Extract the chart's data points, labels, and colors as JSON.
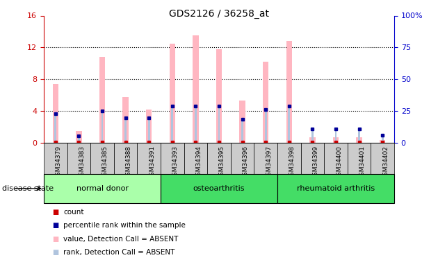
{
  "title": "GDS2126 / 36258_at",
  "samples": [
    "GSM34379",
    "GSM34383",
    "GSM34385",
    "GSM34388",
    "GSM34391",
    "GSM34393",
    "GSM34394",
    "GSM34395",
    "GSM34396",
    "GSM34397",
    "GSM34398",
    "GSM34399",
    "GSM34400",
    "GSM34401",
    "GSM34402"
  ],
  "values_absent": [
    7.4,
    1.5,
    10.8,
    5.8,
    4.2,
    12.5,
    13.5,
    11.8,
    5.3,
    10.2,
    12.8,
    0.7,
    0.7,
    0.7,
    0.4
  ],
  "rank_absent": [
    3.7,
    0.9,
    4.0,
    3.2,
    3.2,
    4.6,
    4.6,
    4.6,
    3.0,
    4.2,
    4.6,
    1.8,
    1.8,
    1.8,
    1.0
  ],
  "group_labels": [
    "normal donor",
    "osteoarthritis",
    "rheumatoid arthritis"
  ],
  "group_starts": [
    0,
    5,
    10
  ],
  "group_ends": [
    5,
    10,
    15
  ],
  "group_colors": [
    "#aaffaa",
    "#44dd66",
    "#44dd66"
  ],
  "ylim_left": [
    0,
    16
  ],
  "ylim_right": [
    0,
    100
  ],
  "yticks_left": [
    0,
    4,
    8,
    12,
    16
  ],
  "yticks_right": [
    0,
    25,
    50,
    75,
    100
  ],
  "value_bar_width": 0.25,
  "rank_bar_width": 0.08,
  "value_color": "#ffb6c1",
  "rank_color": "#b0c4de",
  "count_color": "#cc0000",
  "percentile_color": "#000099",
  "background_color": "#ffffff",
  "plot_bg": "#ffffff",
  "disease_state_label": "disease state",
  "right_axis_color": "#0000cc",
  "left_axis_color": "#cc0000",
  "gray_cell_color": "#cccccc",
  "legend_items": [
    {
      "color": "#cc0000",
      "label": "count"
    },
    {
      "color": "#000099",
      "label": "percentile rank within the sample"
    },
    {
      "color": "#ffb6c1",
      "label": "value, Detection Call = ABSENT"
    },
    {
      "color": "#b0c4de",
      "label": "rank, Detection Call = ABSENT"
    }
  ]
}
